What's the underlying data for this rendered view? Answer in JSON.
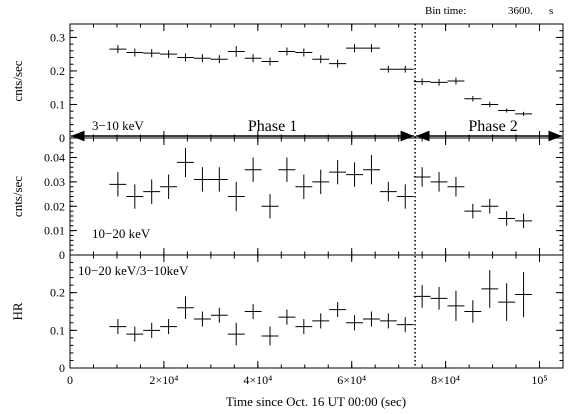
{
  "chart_data": {
    "type": "scatter",
    "header": {
      "label": "Bin time:",
      "value": "3600.",
      "unit": "s"
    },
    "xlabel": "Time since Oct. 16 UT 00:00 (sec)",
    "xlim": [
      0,
      105000
    ],
    "x_ticks": [
      {
        "value": 0,
        "label": "0"
      },
      {
        "value": 20000,
        "label": "2×10⁴"
      },
      {
        "value": 40000,
        "label": "4×10⁴"
      },
      {
        "value": 60000,
        "label": "6×10⁴"
      },
      {
        "value": 80000,
        "label": "8×10⁴"
      },
      {
        "value": 100000,
        "label": "10⁵"
      }
    ],
    "x_minor_step": 5000,
    "phase_boundary": 73500,
    "annotations": {
      "phase1": "Phase 1",
      "phase2": "Phase 2"
    },
    "xerr": 1800,
    "x": [
      10200,
      13800,
      17400,
      21000,
      24600,
      28200,
      31800,
      35400,
      39000,
      42600,
      46200,
      49800,
      53400,
      57000,
      60600,
      64200,
      67800,
      71400,
      75000,
      78600,
      82200,
      85800,
      89400,
      93000,
      96600
    ],
    "panels": [
      {
        "ylabel": "cnts/sec",
        "band_label": "3−10 keV",
        "ylim": [
          0,
          0.34
        ],
        "y_ticks": [
          {
            "value": 0,
            "label": "0"
          },
          {
            "value": 0.1,
            "label": "0.1"
          },
          {
            "value": 0.2,
            "label": "0.2"
          },
          {
            "value": 0.3,
            "label": "0.3"
          }
        ],
        "y_minor_step": 0.02,
        "y": [
          0.265,
          0.255,
          0.253,
          0.25,
          0.24,
          0.238,
          0.235,
          0.258,
          0.238,
          0.228,
          0.258,
          0.255,
          0.235,
          0.222,
          0.268,
          0.268,
          0.205,
          0.205,
          0.168,
          0.166,
          0.17,
          0.117,
          0.1,
          0.082,
          0.072
        ],
        "yerr": [
          0.012,
          0.012,
          0.012,
          0.012,
          0.012,
          0.012,
          0.012,
          0.016,
          0.012,
          0.012,
          0.012,
          0.012,
          0.012,
          0.012,
          0.012,
          0.012,
          0.01,
          0.01,
          0.01,
          0.01,
          0.01,
          0.008,
          0.008,
          0.006,
          0.006
        ]
      },
      {
        "ylabel": "cnts/sec",
        "band_label": "10−20 keV",
        "ylim": [
          0,
          0.048
        ],
        "y_ticks": [
          {
            "value": 0,
            "label": "0"
          },
          {
            "value": 0.01,
            "label": "0.01"
          },
          {
            "value": 0.02,
            "label": "0.02"
          },
          {
            "value": 0.03,
            "label": "0.03"
          },
          {
            "value": 0.04,
            "label": "0.04"
          }
        ],
        "y_minor_step": 0.002,
        "y": [
          0.029,
          0.024,
          0.026,
          0.028,
          0.038,
          0.031,
          0.031,
          0.024,
          0.035,
          0.02,
          0.035,
          0.028,
          0.03,
          0.034,
          0.033,
          0.035,
          0.026,
          0.024,
          0.032,
          0.03,
          0.028,
          0.018,
          0.02,
          0.015,
          0.014
        ],
        "yerr": [
          0.005,
          0.005,
          0.005,
          0.005,
          0.006,
          0.005,
          0.005,
          0.006,
          0.005,
          0.005,
          0.005,
          0.005,
          0.005,
          0.005,
          0.005,
          0.006,
          0.004,
          0.005,
          0.004,
          0.004,
          0.004,
          0.003,
          0.003,
          0.003,
          0.003
        ]
      },
      {
        "ylabel": "HR",
        "band_label": "10−20 keV/3−10keV",
        "ylim": [
          0,
          0.3
        ],
        "y_ticks": [
          {
            "value": 0,
            "label": "0"
          },
          {
            "value": 0.1,
            "label": "0.1"
          },
          {
            "value": 0.2,
            "label": "0.2"
          }
        ],
        "y_minor_step": 0.02,
        "y": [
          0.11,
          0.09,
          0.1,
          0.11,
          0.16,
          0.13,
          0.14,
          0.09,
          0.15,
          0.085,
          0.135,
          0.11,
          0.125,
          0.155,
          0.12,
          0.13,
          0.125,
          0.115,
          0.19,
          0.185,
          0.165,
          0.15,
          0.21,
          0.175,
          0.195
        ],
        "yerr": [
          0.02,
          0.02,
          0.02,
          0.02,
          0.03,
          0.02,
          0.02,
          0.03,
          0.02,
          0.025,
          0.02,
          0.02,
          0.02,
          0.02,
          0.02,
          0.02,
          0.02,
          0.02,
          0.03,
          0.03,
          0.04,
          0.03,
          0.05,
          0.05,
          0.06
        ]
      }
    ]
  }
}
